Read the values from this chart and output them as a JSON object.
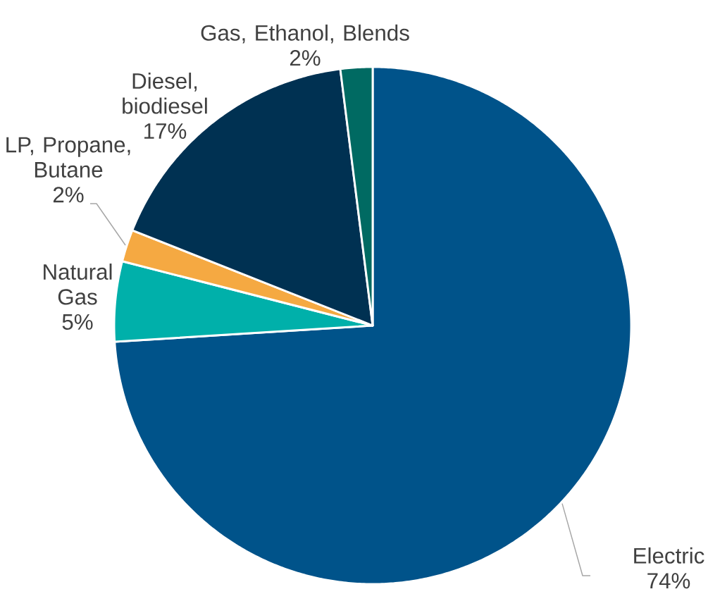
{
  "chart_data": {
    "type": "pie",
    "categories": [
      "Electric",
      "Natural Gas",
      "LP, Propane, Butane",
      "Diesel, biodiesel",
      "Gas, Ethanol, Blends"
    ],
    "values": [
      74,
      5,
      2,
      17,
      2
    ],
    "colors": [
      "#00538a",
      "#00b0aa",
      "#f5a942",
      "#003152",
      "#006a62"
    ],
    "value_labels": [
      "74%",
      "5%",
      "2%",
      "17%",
      "2%"
    ]
  }
}
